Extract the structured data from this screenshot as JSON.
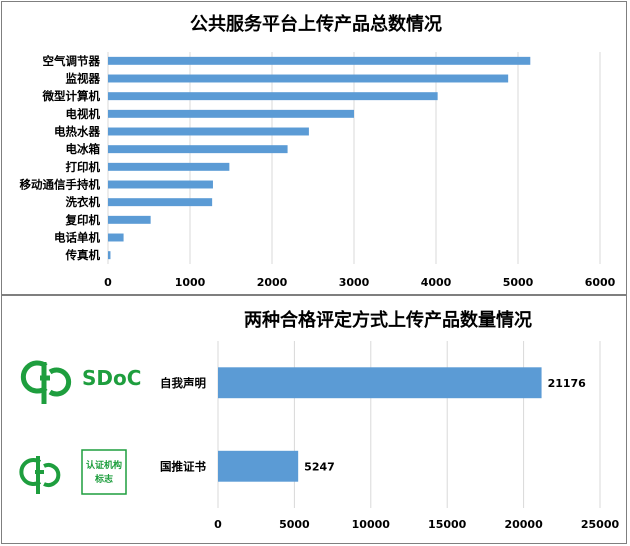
{
  "colors": {
    "bar": "#5b9bd5",
    "logo_green": "#1e9e3e",
    "grid": "#d9d9d9"
  },
  "chart_data": [
    {
      "type": "bar",
      "orientation": "horizontal",
      "title": "公共服务平台上传产品总数情况",
      "categories": [
        "空气调节器",
        "监视器",
        "微型计算机",
        "电视机",
        "电热水器",
        "电冰箱",
        "打印机",
        "移动通信手持机",
        "洗衣机",
        "复印机",
        "电话单机",
        "传真机"
      ],
      "values": [
        5150,
        4880,
        4020,
        3000,
        2450,
        2190,
        1480,
        1280,
        1270,
        520,
        190,
        30
      ],
      "xlim": [
        0,
        6000
      ],
      "xticks": [
        0,
        1000,
        2000,
        3000,
        4000,
        5000,
        6000
      ],
      "grid": true
    },
    {
      "type": "bar",
      "orientation": "horizontal",
      "title": "两种合格评定方式上传产品数量情况",
      "categories": [
        "自我声明",
        "国推证书"
      ],
      "values": [
        21176,
        5247
      ],
      "data_labels": [
        "21176",
        "5247"
      ],
      "xlim": [
        0,
        25000
      ],
      "xticks": [
        0,
        5000,
        10000,
        15000,
        20000,
        25000
      ],
      "grid": true
    }
  ],
  "logos": [
    {
      "icon": "sdoc-logo-icon",
      "text": "SDoC"
    },
    {
      "icon": "certification-logo-icon",
      "text": "认证机构标志"
    }
  ]
}
